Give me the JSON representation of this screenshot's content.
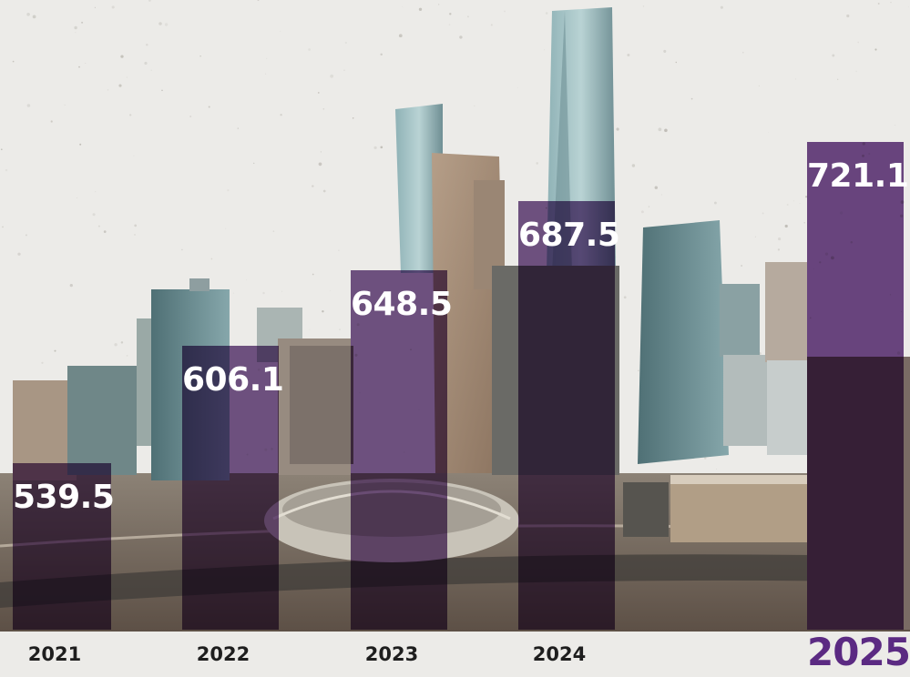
{
  "chart_data": {
    "type": "bar",
    "categories": [
      "2021",
      "2022",
      "2023",
      "2024",
      "2025"
    ],
    "values": [
      539.5,
      606.1,
      648.5,
      687.5,
      721.1
    ],
    "value_labels": [
      "539.5",
      "606.1",
      "648.5",
      "687.5",
      "721.1"
    ],
    "highlight_category": "2025",
    "title": "",
    "xlabel": "",
    "ylabel": "",
    "grid": false,
    "legend": false,
    "colors": {
      "bar": "#542d6e",
      "highlight_year_text": "#5b2a82",
      "value_text": "#ffffff",
      "year_text": "#1e1e1e",
      "background": "#ecebe8"
    },
    "background_image": "city-skyline"
  }
}
